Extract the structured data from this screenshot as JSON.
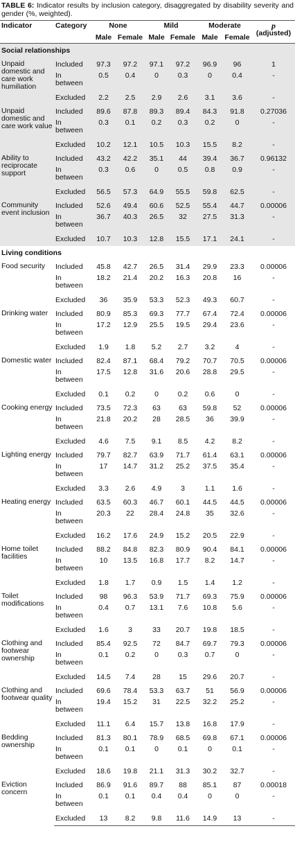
{
  "header": {
    "label": "TABLE 6:",
    "title": "Indicator results by inclusion category, disaggregated by disability severity and gender (%, weighted)."
  },
  "columns": {
    "indicator": "Indicator",
    "category": "Category",
    "groups": [
      "None",
      "Mild",
      "Moderate"
    ],
    "sub": [
      "Male",
      "Female",
      "Male",
      "Female",
      "Male",
      "Female"
    ],
    "p": "p",
    "p_note": "(adjusted)"
  },
  "sections": [
    {
      "title": "Social relationships",
      "indicators": [
        {
          "name": "Unpaid domestic and care work humiliation",
          "rows": [
            {
              "category": "Included",
              "values": [
                97.3,
                97.2,
                97.1,
                97.2,
                96.9,
                96
              ],
              "p": "1"
            },
            {
              "category": "In between",
              "values": [
                0.5,
                0.4,
                0,
                0.3,
                0,
                0.4
              ],
              "p": "-"
            },
            {
              "category": "Excluded",
              "values": [
                2.2,
                2.5,
                2.9,
                2.6,
                3.1,
                3.6
              ],
              "p": "-"
            }
          ]
        },
        {
          "name": "Unpaid domestic and care work value",
          "rows": [
            {
              "category": "Included",
              "values": [
                89.6,
                87.8,
                89.3,
                89.4,
                84.3,
                91.8
              ],
              "p": "0.27036"
            },
            {
              "category": "In between",
              "values": [
                0.3,
                0.1,
                0.2,
                0.3,
                0.2,
                0
              ],
              "p": "-"
            },
            {
              "category": "Excluded",
              "values": [
                10.2,
                12.1,
                10.5,
                10.3,
                15.5,
                8.2
              ],
              "p": "-"
            }
          ]
        },
        {
          "name": "Ability to reciprocate support",
          "rows": [
            {
              "category": "Included",
              "values": [
                43.2,
                42.2,
                35.1,
                44,
                39.4,
                36.7
              ],
              "p": "0.96132"
            },
            {
              "category": "In between",
              "values": [
                0.3,
                0.6,
                0,
                0.5,
                0.8,
                0.9
              ],
              "p": "-"
            },
            {
              "category": "Excluded",
              "values": [
                56.5,
                57.3,
                64.9,
                55.5,
                59.8,
                62.5
              ],
              "p": "-"
            }
          ]
        },
        {
          "name": "Community event inclusion",
          "rows": [
            {
              "category": "Included",
              "values": [
                52.6,
                49.4,
                60.6,
                52.5,
                55.4,
                44.7
              ],
              "p": "0.00006"
            },
            {
              "category": "In between",
              "values": [
                36.7,
                40.3,
                26.5,
                32,
                27.5,
                31.3
              ],
              "p": "-"
            },
            {
              "category": "Excluded",
              "values": [
                10.7,
                10.3,
                12.8,
                15.5,
                17.1,
                24.1
              ],
              "p": "-"
            }
          ]
        }
      ]
    },
    {
      "title": "Living conditions",
      "indicators": [
        {
          "name": "Food security",
          "rows": [
            {
              "category": "Included",
              "values": [
                45.8,
                42.7,
                26.5,
                31.4,
                29.9,
                23.3
              ],
              "p": "0.00006"
            },
            {
              "category": "In between",
              "values": [
                18.2,
                21.4,
                20.2,
                16.3,
                20.8,
                16
              ],
              "p": "-"
            },
            {
              "category": "Excluded",
              "values": [
                36,
                35.9,
                53.3,
                52.3,
                49.3,
                60.7
              ],
              "p": "-"
            }
          ]
        },
        {
          "name": "Drinking water",
          "rows": [
            {
              "category": "Included",
              "values": [
                80.9,
                85.3,
                69.3,
                77.7,
                67.4,
                72.4
              ],
              "p": "0.00006"
            },
            {
              "category": "In between",
              "values": [
                17.2,
                12.9,
                25.5,
                19.5,
                29.4,
                23.6
              ],
              "p": "-"
            },
            {
              "category": "Excluded",
              "values": [
                1.9,
                1.8,
                5.2,
                2.7,
                3.2,
                4
              ],
              "p": "-"
            }
          ]
        },
        {
          "name": "Domestic water",
          "rows": [
            {
              "category": "Included",
              "values": [
                82.4,
                87.1,
                68.4,
                79.2,
                70.7,
                70.5
              ],
              "p": "0.00006"
            },
            {
              "category": "In between",
              "values": [
                17.5,
                12.8,
                31.6,
                20.6,
                28.8,
                29.5
              ],
              "p": "-"
            },
            {
              "category": "Excluded",
              "values": [
                0.1,
                0.2,
                0,
                0.2,
                0.6,
                0
              ],
              "p": "-"
            }
          ]
        },
        {
          "name": "Cooking energy",
          "rows": [
            {
              "category": "Included",
              "values": [
                73.5,
                72.3,
                63,
                63,
                59.8,
                52
              ],
              "p": "0.00006"
            },
            {
              "category": "In between",
              "values": [
                21.8,
                20.2,
                28,
                28.5,
                36,
                39.9
              ],
              "p": "-"
            },
            {
              "category": "Excluded",
              "values": [
                4.6,
                7.5,
                9.1,
                8.5,
                4.2,
                8.2
              ],
              "p": "-"
            }
          ]
        },
        {
          "name": "Lighting energy",
          "rows": [
            {
              "category": "Included",
              "values": [
                79.7,
                82.7,
                63.9,
                71.7,
                61.4,
                63.1
              ],
              "p": "0.00006"
            },
            {
              "category": "In between",
              "values": [
                17,
                14.7,
                31.2,
                25.2,
                37.5,
                35.4
              ],
              "p": "-"
            },
            {
              "category": "Excluded",
              "values": [
                3.3,
                2.6,
                4.9,
                3,
                1.1,
                1.6
              ],
              "p": "-"
            }
          ]
        },
        {
          "name": "Heating energy",
          "rows": [
            {
              "category": "Included",
              "values": [
                63.5,
                60.3,
                46.7,
                60.1,
                44.5,
                44.5
              ],
              "p": "0.00006"
            },
            {
              "category": "In between",
              "values": [
                20.3,
                22,
                28.4,
                24.8,
                35,
                32.6
              ],
              "p": "-"
            },
            {
              "category": "Excluded",
              "values": [
                16.2,
                17.6,
                24.9,
                15.2,
                20.5,
                22.9
              ],
              "p": "-"
            }
          ]
        },
        {
          "name": "Home toilet facilities",
          "rows": [
            {
              "category": "Included",
              "values": [
                88.2,
                84.8,
                82.3,
                80.9,
                90.4,
                84.1
              ],
              "p": "0.00006"
            },
            {
              "category": "In between",
              "values": [
                10,
                13.5,
                16.8,
                17.7,
                8.2,
                14.7
              ],
              "p": "-"
            },
            {
              "category": "Excluded",
              "values": [
                1.8,
                1.7,
                0.9,
                1.5,
                1.4,
                1.2
              ],
              "p": "-"
            }
          ]
        },
        {
          "name": "Toilet modifications",
          "rows": [
            {
              "category": "Included",
              "values": [
                98,
                96.3,
                53.9,
                71.7,
                69.3,
                75.9
              ],
              "p": "0.00006"
            },
            {
              "category": "In between",
              "values": [
                0.4,
                0.7,
                13.1,
                7.6,
                10.8,
                5.6
              ],
              "p": "-"
            },
            {
              "category": "Excluded",
              "values": [
                1.6,
                3,
                33,
                20.7,
                19.8,
                18.5
              ],
              "p": "-"
            }
          ]
        },
        {
          "name": "Clothing and footwear ownership",
          "rows": [
            {
              "category": "Included",
              "values": [
                85.4,
                92.5,
                72,
                84.7,
                69.7,
                79.3
              ],
              "p": "0.00006"
            },
            {
              "category": "In between",
              "values": [
                0.1,
                0.2,
                0,
                0.3,
                0.7,
                0
              ],
              "p": "-"
            },
            {
              "category": "Excluded",
              "values": [
                14.5,
                7.4,
                28,
                15,
                29.6,
                20.7
              ],
              "p": "-"
            }
          ]
        },
        {
          "name": "Clothing and footwear quality",
          "rows": [
            {
              "category": "Included",
              "values": [
                69.6,
                78.4,
                53.3,
                63.7,
                51,
                56.9
              ],
              "p": "0.00006"
            },
            {
              "category": "In between",
              "values": [
                19.4,
                15.2,
                31,
                22.5,
                32.2,
                25.2
              ],
              "p": "-"
            },
            {
              "category": "Excluded",
              "values": [
                11.1,
                6.4,
                15.7,
                13.8,
                16.8,
                17.9
              ],
              "p": "-"
            }
          ]
        },
        {
          "name": "Bedding ownership",
          "rows": [
            {
              "category": "Included",
              "values": [
                81.3,
                80.1,
                78.9,
                68.5,
                69.8,
                67.1
              ],
              "p": "0.00006"
            },
            {
              "category": "In between",
              "values": [
                0.1,
                0.1,
                0,
                0.1,
                0,
                0.1
              ],
              "p": "-"
            },
            {
              "category": "Excluded",
              "values": [
                18.6,
                19.8,
                21.1,
                31.3,
                30.2,
                32.7
              ],
              "p": "-"
            }
          ]
        },
        {
          "name": "Eviction concern",
          "rows": [
            {
              "category": "Included",
              "values": [
                86.9,
                91.6,
                89.7,
                88,
                85.1,
                87
              ],
              "p": "0.00018"
            },
            {
              "category": "In between",
              "values": [
                0.1,
                0.1,
                0.4,
                0.4,
                0,
                0
              ],
              "p": "-"
            },
            {
              "category": "Excluded",
              "values": [
                13,
                8.2,
                9.8,
                11.6,
                14.9,
                13
              ],
              "p": "-"
            }
          ]
        }
      ]
    }
  ]
}
